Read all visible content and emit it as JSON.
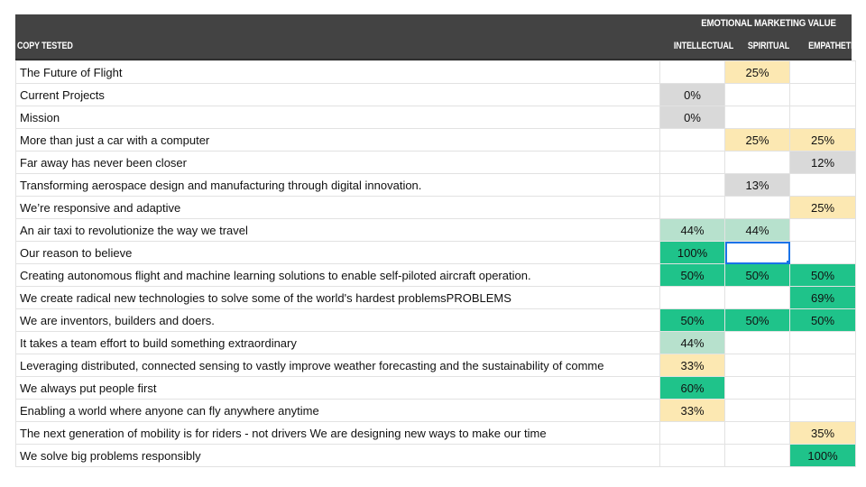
{
  "header": {
    "group_label": "EMOTIONAL MARKETING VALUE",
    "copy_label": "COPY TESTED",
    "columns": [
      "INTELLECTUAL",
      "SPIRITUAL",
      "EMPATHETIC"
    ]
  },
  "colors": {
    "header_bg": "#434343",
    "gray": "#d9d9d9",
    "light_yellow": "#fce8b2",
    "light_green": "#b7e1cd",
    "green": "#1fc38a",
    "selection": "#1a73e8"
  },
  "selected_cell": {
    "row": 8,
    "col": 1
  },
  "rows": [
    {
      "copy": "The Future of Flight",
      "values": [
        "",
        "25%",
        ""
      ],
      "fills": [
        "",
        "light_yellow",
        ""
      ]
    },
    {
      "copy": "Current Projects",
      "values": [
        "0%",
        "",
        ""
      ],
      "fills": [
        "gray",
        "",
        ""
      ]
    },
    {
      "copy": "Mission",
      "values": [
        "0%",
        "",
        ""
      ],
      "fills": [
        "gray",
        "",
        ""
      ]
    },
    {
      "copy": "More than just a car with a computer",
      "values": [
        "",
        "25%",
        "25%"
      ],
      "fills": [
        "",
        "light_yellow",
        "light_yellow"
      ]
    },
    {
      "copy": "Far away has never been closer",
      "values": [
        "",
        "",
        "12%"
      ],
      "fills": [
        "",
        "",
        "gray"
      ]
    },
    {
      "copy": "Transforming aerospace design and manufacturing through digital innovation.",
      "values": [
        "",
        "13%",
        ""
      ],
      "fills": [
        "",
        "gray",
        ""
      ]
    },
    {
      "copy": "We’re responsive and adaptive",
      "values": [
        "",
        "",
        "25%"
      ],
      "fills": [
        "",
        "",
        "light_yellow"
      ]
    },
    {
      "copy": "An air taxi to revolutionize the way we travel",
      "values": [
        "44%",
        "44%",
        ""
      ],
      "fills": [
        "light_green",
        "light_green",
        ""
      ]
    },
    {
      "copy": "Our reason to believe",
      "values": [
        "100%",
        "",
        ""
      ],
      "fills": [
        "green",
        "",
        ""
      ]
    },
    {
      "copy": "Creating autonomous flight and machine learning solutions to enable self-piloted aircraft operation.",
      "values": [
        "50%",
        "50%",
        "50%"
      ],
      "fills": [
        "green",
        "green",
        "green"
      ]
    },
    {
      "copy": "We create radical new technologies to solve some of the world's hardest problemsPROBLEMS",
      "values": [
        "",
        "",
        "69%"
      ],
      "fills": [
        "",
        "",
        "green"
      ]
    },
    {
      "copy": "We are inventors, builders and doers.",
      "values": [
        "50%",
        "50%",
        "50%"
      ],
      "fills": [
        "green",
        "green",
        "green"
      ]
    },
    {
      "copy": "It takes a team effort to build something extraordinary",
      "values": [
        "44%",
        "",
        ""
      ],
      "fills": [
        "light_green",
        "",
        ""
      ]
    },
    {
      "copy": "Leveraging distributed, connected sensing to vastly improve weather forecasting and the sustainability of comme",
      "values": [
        "33%",
        "",
        ""
      ],
      "fills": [
        "light_yellow",
        "",
        ""
      ]
    },
    {
      "copy": "We always put people first",
      "values": [
        "60%",
        "",
        ""
      ],
      "fills": [
        "green",
        "",
        ""
      ]
    },
    {
      "copy": "Enabling a world where anyone can fly anywhere anytime",
      "values": [
        "33%",
        "",
        ""
      ],
      "fills": [
        "light_yellow",
        "",
        ""
      ]
    },
    {
      "copy": "The next generation of mobility is for riders - not drivers We are designing new ways to make our time",
      "values": [
        "",
        "",
        "35%"
      ],
      "fills": [
        "",
        "",
        "light_yellow"
      ]
    },
    {
      "copy": "We solve big problems responsibly",
      "values": [
        "",
        "",
        "100%"
      ],
      "fills": [
        "",
        "",
        "green"
      ]
    }
  ]
}
